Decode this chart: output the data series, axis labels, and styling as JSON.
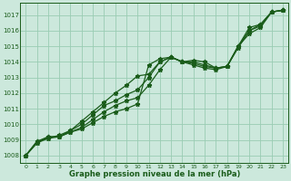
{
  "title": "Graphe pression niveau de la mer (hPa)",
  "bg_color": "#cce8dc",
  "grid_color": "#99ccb3",
  "line_color": "#1a5c1a",
  "xlim": [
    -0.5,
    23.5
  ],
  "ylim": [
    1007.5,
    1017.8
  ],
  "xticks": [
    0,
    1,
    2,
    3,
    4,
    5,
    6,
    7,
    8,
    9,
    10,
    11,
    12,
    13,
    14,
    15,
    16,
    17,
    18,
    19,
    20,
    21,
    22,
    23
  ],
  "yticks": [
    1008,
    1009,
    1010,
    1011,
    1012,
    1013,
    1014,
    1015,
    1016,
    1017
  ],
  "series": [
    [
      1008.0,
      1008.8,
      1009.2,
      1009.2,
      1009.5,
      1009.7,
      1010.1,
      1010.5,
      1010.8,
      1011.0,
      1011.3,
      1013.8,
      1014.2,
      1014.3,
      1014.0,
      1013.8,
      1013.6,
      1013.5,
      1013.7,
      1015.0,
      1015.8,
      1016.2,
      1017.2,
      1017.3
    ],
    [
      1008.0,
      1008.8,
      1009.1,
      1009.2,
      1009.5,
      1009.8,
      1010.3,
      1010.8,
      1011.2,
      1011.5,
      1011.7,
      1012.5,
      1013.5,
      1014.3,
      1014.0,
      1013.9,
      1013.7,
      1013.6,
      1013.7,
      1014.9,
      1016.0,
      1016.3,
      1017.2,
      1017.3
    ],
    [
      1008.0,
      1008.9,
      1009.1,
      1009.3,
      1009.6,
      1010.0,
      1010.6,
      1011.2,
      1011.5,
      1011.9,
      1012.2,
      1013.0,
      1014.0,
      1014.3,
      1014.0,
      1014.0,
      1013.8,
      1013.6,
      1013.7,
      1015.0,
      1016.0,
      1016.4,
      1017.2,
      1017.3
    ],
    [
      1008.0,
      1008.9,
      1009.2,
      1009.2,
      1009.6,
      1010.2,
      1010.8,
      1011.4,
      1012.0,
      1012.5,
      1013.1,
      1013.2,
      1014.0,
      1014.3,
      1014.0,
      1014.1,
      1014.0,
      1013.6,
      1013.7,
      1015.0,
      1016.2,
      1016.4,
      1017.2,
      1017.3
    ]
  ]
}
